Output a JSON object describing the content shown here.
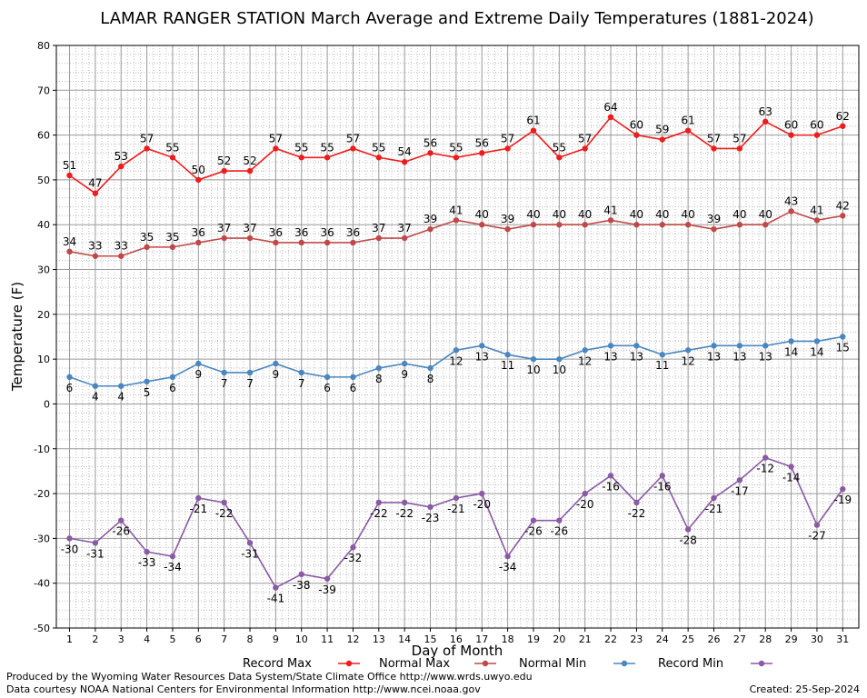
{
  "chart_data": {
    "type": "line",
    "title": "LAMAR RANGER STATION March Average and Extreme Daily Temperatures (1881-2024)",
    "xlabel": "Day of Month",
    "ylabel": "Temperature (F)",
    "ylim": [
      -50,
      80
    ],
    "yticks": [
      80,
      70,
      60,
      50,
      40,
      30,
      20,
      10,
      0,
      -10,
      -20,
      -30,
      -40,
      -50
    ],
    "x": [
      1,
      2,
      3,
      4,
      5,
      6,
      7,
      8,
      9,
      10,
      11,
      12,
      13,
      14,
      15,
      16,
      17,
      18,
      19,
      20,
      21,
      22,
      23,
      24,
      25,
      26,
      27,
      28,
      29,
      30,
      31
    ],
    "grid": true,
    "legend_position": "bottom",
    "series": [
      {
        "name": "Record Max",
        "color": "#ee1c1c",
        "label_pos": "above",
        "values": [
          51,
          47,
          53,
          57,
          55,
          50,
          52,
          52,
          57,
          55,
          55,
          57,
          55,
          54,
          56,
          55,
          56,
          57,
          61,
          55,
          57,
          64,
          60,
          59,
          61,
          57,
          57,
          63,
          60,
          60,
          62
        ]
      },
      {
        "name": "Normal Max",
        "color": "#c04848",
        "label_pos": "above",
        "values": [
          34,
          33,
          33,
          35,
          35,
          36,
          37,
          37,
          36,
          36,
          36,
          36,
          37,
          37,
          39,
          41,
          40,
          39,
          40,
          40,
          40,
          41,
          40,
          40,
          40,
          39,
          40,
          40,
          43,
          41,
          42
        ]
      },
      {
        "name": "Normal Min",
        "color": "#4a86c0",
        "label_pos": "below",
        "values": [
          6,
          4,
          4,
          5,
          6,
          9,
          7,
          7,
          9,
          7,
          6,
          6,
          8,
          9,
          8,
          12,
          13,
          11,
          10,
          10,
          12,
          13,
          13,
          11,
          12,
          13,
          13,
          13,
          14,
          14,
          15
        ]
      },
      {
        "name": "Record Min",
        "color": "#8a5aa4",
        "label_pos": "below",
        "values": [
          -30,
          -31,
          -26,
          -33,
          -34,
          -21,
          -22,
          -31,
          -41,
          -38,
          -39,
          -32,
          -22,
          -22,
          -23,
          -21,
          -20,
          -34,
          -26,
          -26,
          -20,
          -16,
          -22,
          -16,
          -28,
          -21,
          -17,
          -12,
          -14,
          -27,
          -19
        ]
      }
    ]
  },
  "footer": {
    "produced_by": "Produced by the Wyoming Water Resources Data System/State Climate Office http://www.wrds.uwyo.edu",
    "data_courtesy": "Data courtesy NOAA National Centers for Environmental Information http://www.ncei.noaa.gov",
    "created": "Created:  25-Sep-2024"
  }
}
